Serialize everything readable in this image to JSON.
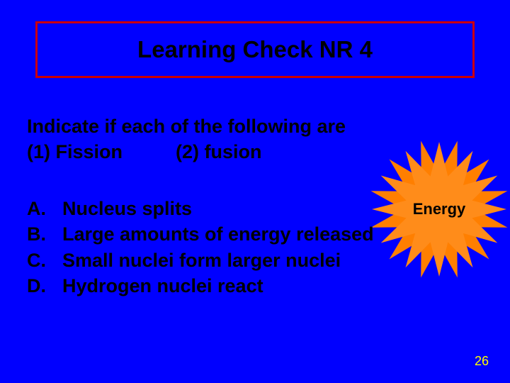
{
  "background_color": "#0000ff",
  "title": {
    "text": "Learning Check NR 4",
    "fontsize": 33,
    "color": "#000000",
    "border_color": "#cc0000",
    "border_width": 3
  },
  "prompt": {
    "line1": "Indicate if each of the following are",
    "line2_left": "(1) Fission",
    "line2_right": "(2) fusion",
    "fontsize": 27,
    "color": "#000000"
  },
  "items": {
    "fontsize": 27,
    "color": "#000000",
    "list": [
      {
        "letter": "A.",
        "text": "Nucleus splits"
      },
      {
        "letter": "B.",
        "text": "Large amounts of energy released"
      },
      {
        "letter": "C.",
        "text": "Small nuclei form larger nuclei"
      },
      {
        "letter": "D.",
        "text": "Hydrogen nuclei react"
      }
    ]
  },
  "burst": {
    "label": "Energy",
    "label_fontsize": 22,
    "label_color": "#000000",
    "back_fill": "#ff7f00",
    "front_fill": "#ff8c1a",
    "points": 12,
    "outer_r": 95,
    "inner_r": 48,
    "back_rotation_deg": 15,
    "back_scale": 1.05
  },
  "page_number": {
    "value": "26",
    "color": "#ffff00",
    "fontsize": 18
  }
}
